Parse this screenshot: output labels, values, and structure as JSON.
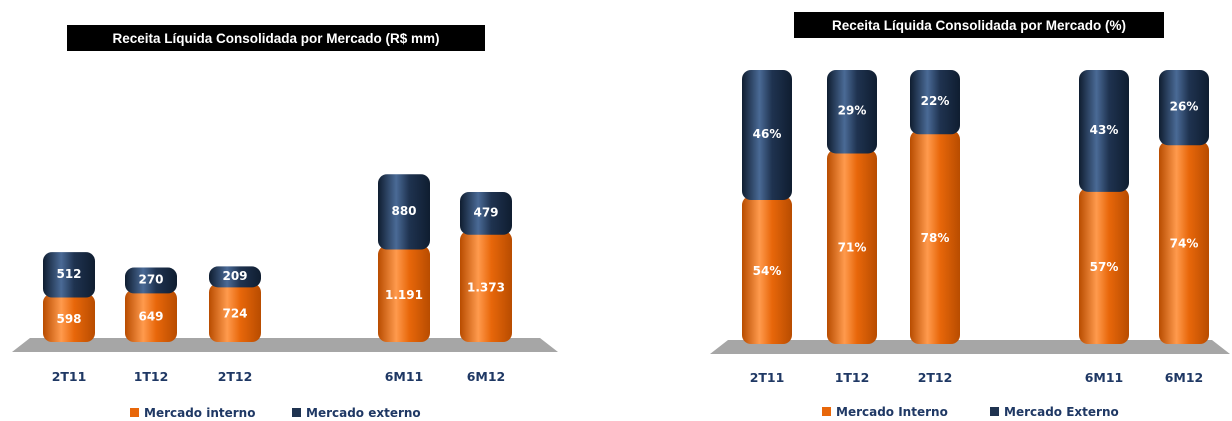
{
  "colors": {
    "mercado_interno": "#e8670a",
    "mercado_externo": "#1f3350",
    "floor": "#a6a6a6"
  },
  "chart_data": [
    {
      "type": "bar",
      "stacked": true,
      "title": "Receita Líquida Consolidada por Mercado (R$ mm)",
      "categories": [
        "2T11",
        "1T12",
        "2T12",
        "6M11",
        "6M12"
      ],
      "series": [
        {
          "name": "Mercado interno",
          "values": [
            598,
            649,
            724,
            1191,
            1373
          ],
          "labels": [
            "598",
            "649",
            "724",
            "1.191",
            "1.373"
          ]
        },
        {
          "name": "Mercado externo",
          "values": [
            512,
            270,
            209,
            880,
            479
          ],
          "labels": [
            "512",
            "270",
            "209",
            "880",
            "479"
          ]
        }
      ],
      "ylim": [
        0,
        2400
      ],
      "legend": "bottom",
      "grid": false
    },
    {
      "type": "bar",
      "stacked": true,
      "title": "Receita Líquida Consolidada por Mercado (%)",
      "categories": [
        "2T11",
        "1T12",
        "2T12",
        "6M11",
        "6M12"
      ],
      "series": [
        {
          "name": "Mercado Interno",
          "values": [
            54,
            71,
            78,
            57,
            74
          ],
          "labels": [
            "54%",
            "71%",
            "78%",
            "57%",
            "74%"
          ]
        },
        {
          "name": "Mercado Externo",
          "values": [
            46,
            29,
            22,
            43,
            26
          ],
          "labels": [
            "46%",
            "29%",
            "22%",
            "43%",
            "26%"
          ]
        }
      ],
      "ylim": [
        0,
        100
      ],
      "legend": "bottom",
      "grid": false
    }
  ]
}
